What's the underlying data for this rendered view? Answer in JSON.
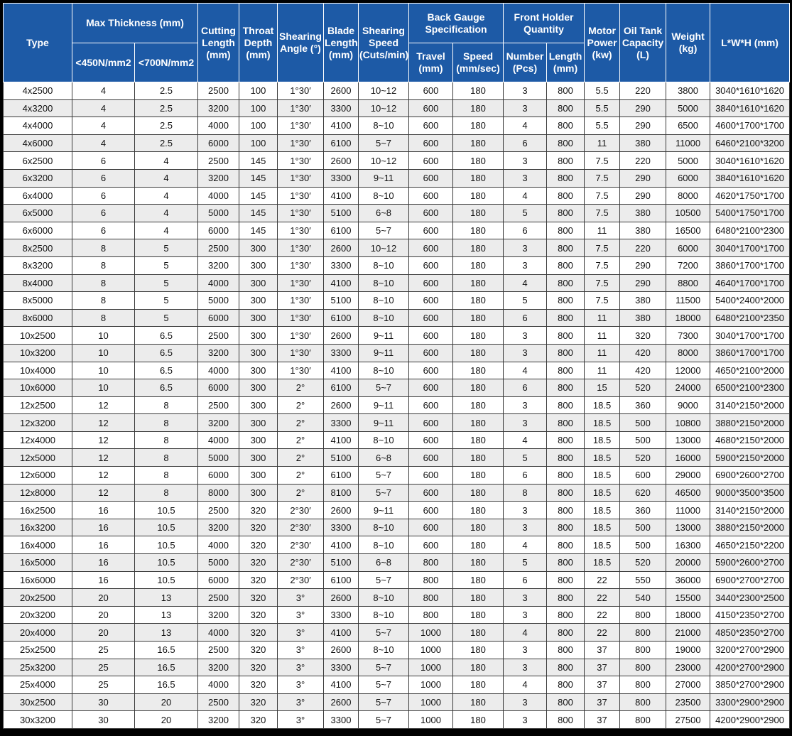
{
  "header": {
    "type": "Type",
    "max_thickness": "Max Thickness (mm)",
    "lt450": "<450N/mm2",
    "lt700": "<700N/mm2",
    "cutting_length": "Cutting Length (mm)",
    "throat_depth": "Throat Depth (mm)",
    "shearing_angle": "Shearing Angle (°)",
    "blade_length": "Blade Length (mm)",
    "shearing_speed": "Shearing Speed (Cuts/min)",
    "back_gauge": "Back Gauge Specification",
    "travel": "Travel (mm)",
    "speed": "Speed (mm/sec)",
    "front_holder": "Front Holder Quantity",
    "number": "Number (Pcs)",
    "length": "Length (mm)",
    "motor_power": "Motor Power (kw)",
    "oil_tank": "Oil Tank Capacity (L)",
    "weight": "Weight (kg)",
    "lwh": "L*W*H (mm)"
  },
  "rows": [
    [
      "4x2500",
      "4",
      "2.5",
      "2500",
      "100",
      "1°30′",
      "2600",
      "10~12",
      "600",
      "180",
      "3",
      "800",
      "5.5",
      "220",
      "3800",
      "3040*1610*1620"
    ],
    [
      "4x3200",
      "4",
      "2.5",
      "3200",
      "100",
      "1°30′",
      "3300",
      "10~12",
      "600",
      "180",
      "3",
      "800",
      "5.5",
      "290",
      "5000",
      "3840*1610*1620"
    ],
    [
      "4x4000",
      "4",
      "2.5",
      "4000",
      "100",
      "1°30′",
      "4100",
      "8~10",
      "600",
      "180",
      "4",
      "800",
      "5.5",
      "290",
      "6500",
      "4600*1700*1700"
    ],
    [
      "4x6000",
      "4",
      "2.5",
      "6000",
      "100",
      "1°30′",
      "6100",
      "5~7",
      "600",
      "180",
      "6",
      "800",
      "11",
      "380",
      "11000",
      "6460*2100*3200"
    ],
    [
      "6x2500",
      "6",
      "4",
      "2500",
      "145",
      "1°30′",
      "2600",
      "10~12",
      "600",
      "180",
      "3",
      "800",
      "7.5",
      "220",
      "5000",
      "3040*1610*1620"
    ],
    [
      "6x3200",
      "6",
      "4",
      "3200",
      "145",
      "1°30′",
      "3300",
      "9~11",
      "600",
      "180",
      "3",
      "800",
      "7.5",
      "290",
      "6000",
      "3840*1610*1620"
    ],
    [
      "6x4000",
      "6",
      "4",
      "4000",
      "145",
      "1°30′",
      "4100",
      "8~10",
      "600",
      "180",
      "4",
      "800",
      "7.5",
      "290",
      "8000",
      "4620*1750*1700"
    ],
    [
      "6x5000",
      "6",
      "4",
      "5000",
      "145",
      "1°30′",
      "5100",
      "6~8",
      "600",
      "180",
      "5",
      "800",
      "7.5",
      "380",
      "10500",
      "5400*1750*1700"
    ],
    [
      "6x6000",
      "6",
      "4",
      "6000",
      "145",
      "1°30′",
      "6100",
      "5~7",
      "600",
      "180",
      "6",
      "800",
      "11",
      "380",
      "16500",
      "6480*2100*2300"
    ],
    [
      "8x2500",
      "8",
      "5",
      "2500",
      "300",
      "1°30′",
      "2600",
      "10~12",
      "600",
      "180",
      "3",
      "800",
      "7.5",
      "220",
      "6000",
      "3040*1700*1700"
    ],
    [
      "8x3200",
      "8",
      "5",
      "3200",
      "300",
      "1°30′",
      "3300",
      "8~10",
      "600",
      "180",
      "3",
      "800",
      "7.5",
      "290",
      "7200",
      "3860*1700*1700"
    ],
    [
      "8x4000",
      "8",
      "5",
      "4000",
      "300",
      "1°30′",
      "4100",
      "8~10",
      "600",
      "180",
      "4",
      "800",
      "7.5",
      "290",
      "8800",
      "4640*1700*1700"
    ],
    [
      "8x5000",
      "8",
      "5",
      "5000",
      "300",
      "1°30′",
      "5100",
      "8~10",
      "600",
      "180",
      "5",
      "800",
      "7.5",
      "380",
      "11500",
      "5400*2400*2000"
    ],
    [
      "8x6000",
      "8",
      "5",
      "6000",
      "300",
      "1°30′",
      "6100",
      "8~10",
      "600",
      "180",
      "6",
      "800",
      "11",
      "380",
      "18000",
      "6480*2100*2350"
    ],
    [
      "10x2500",
      "10",
      "6.5",
      "2500",
      "300",
      "1°30′",
      "2600",
      "9~11",
      "600",
      "180",
      "3",
      "800",
      "11",
      "320",
      "7300",
      "3040*1700*1700"
    ],
    [
      "10x3200",
      "10",
      "6.5",
      "3200",
      "300",
      "1°30′",
      "3300",
      "9~11",
      "600",
      "180",
      "3",
      "800",
      "11",
      "420",
      "8000",
      "3860*1700*1700"
    ],
    [
      "10x4000",
      "10",
      "6.5",
      "4000",
      "300",
      "1°30′",
      "4100",
      "8~10",
      "600",
      "180",
      "4",
      "800",
      "11",
      "420",
      "12000",
      "4650*2100*2000"
    ],
    [
      "10x6000",
      "10",
      "6.5",
      "6000",
      "300",
      "2°",
      "6100",
      "5~7",
      "600",
      "180",
      "6",
      "800",
      "15",
      "520",
      "24000",
      "6500*2100*2300"
    ],
    [
      "12x2500",
      "12",
      "8",
      "2500",
      "300",
      "2°",
      "2600",
      "9~11",
      "600",
      "180",
      "3",
      "800",
      "18.5",
      "360",
      "9000",
      "3140*2150*2000"
    ],
    [
      "12x3200",
      "12",
      "8",
      "3200",
      "300",
      "2°",
      "3300",
      "9~11",
      "600",
      "180",
      "3",
      "800",
      "18.5",
      "500",
      "10800",
      "3880*2150*2000"
    ],
    [
      "12x4000",
      "12",
      "8",
      "4000",
      "300",
      "2°",
      "4100",
      "8~10",
      "600",
      "180",
      "4",
      "800",
      "18.5",
      "500",
      "13000",
      "4680*2150*2000"
    ],
    [
      "12x5000",
      "12",
      "8",
      "5000",
      "300",
      "2°",
      "5100",
      "6~8",
      "600",
      "180",
      "5",
      "800",
      "18.5",
      "520",
      "16000",
      "5900*2150*2000"
    ],
    [
      "12x6000",
      "12",
      "8",
      "6000",
      "300",
      "2°",
      "6100",
      "5~7",
      "600",
      "180",
      "6",
      "800",
      "18.5",
      "600",
      "29000",
      "6900*2600*2700"
    ],
    [
      "12x8000",
      "12",
      "8",
      "8000",
      "300",
      "2°",
      "8100",
      "5~7",
      "600",
      "180",
      "8",
      "800",
      "18.5",
      "620",
      "46500",
      "9000*3500*3500"
    ],
    [
      "16x2500",
      "16",
      "10.5",
      "2500",
      "320",
      "2°30′",
      "2600",
      "9~11",
      "600",
      "180",
      "3",
      "800",
      "18.5",
      "360",
      "11000",
      "3140*2150*2000"
    ],
    [
      "16x3200",
      "16",
      "10.5",
      "3200",
      "320",
      "2°30′",
      "3300",
      "8~10",
      "600",
      "180",
      "3",
      "800",
      "18.5",
      "500",
      "13000",
      "3880*2150*2000"
    ],
    [
      "16x4000",
      "16",
      "10.5",
      "4000",
      "320",
      "2°30′",
      "4100",
      "8~10",
      "600",
      "180",
      "4",
      "800",
      "18.5",
      "500",
      "16300",
      "4650*2150*2200"
    ],
    [
      "16x5000",
      "16",
      "10.5",
      "5000",
      "320",
      "2°30′",
      "5100",
      "6~8",
      "800",
      "180",
      "5",
      "800",
      "18.5",
      "520",
      "20000",
      "5900*2600*2700"
    ],
    [
      "16x6000",
      "16",
      "10.5",
      "6000",
      "320",
      "2°30′",
      "6100",
      "5~7",
      "800",
      "180",
      "6",
      "800",
      "22",
      "550",
      "36000",
      "6900*2700*2700"
    ],
    [
      "20x2500",
      "20",
      "13",
      "2500",
      "320",
      "3°",
      "2600",
      "8~10",
      "800",
      "180",
      "3",
      "800",
      "22",
      "540",
      "15500",
      "3440*2300*2500"
    ],
    [
      "20x3200",
      "20",
      "13",
      "3200",
      "320",
      "3°",
      "3300",
      "8~10",
      "800",
      "180",
      "3",
      "800",
      "22",
      "800",
      "18000",
      "4150*2350*2700"
    ],
    [
      "20x4000",
      "20",
      "13",
      "4000",
      "320",
      "3°",
      "4100",
      "5~7",
      "1000",
      "180",
      "4",
      "800",
      "22",
      "800",
      "21000",
      "4850*2350*2700"
    ],
    [
      "25x2500",
      "25",
      "16.5",
      "2500",
      "320",
      "3°",
      "2600",
      "8~10",
      "1000",
      "180",
      "3",
      "800",
      "37",
      "800",
      "19000",
      "3200*2700*2900"
    ],
    [
      "25x3200",
      "25",
      "16.5",
      "3200",
      "320",
      "3°",
      "3300",
      "5~7",
      "1000",
      "180",
      "3",
      "800",
      "37",
      "800",
      "23000",
      "4200*2700*2900"
    ],
    [
      "25x4000",
      "25",
      "16.5",
      "4000",
      "320",
      "3°",
      "4100",
      "5~7",
      "1000",
      "180",
      "4",
      "800",
      "37",
      "800",
      "27000",
      "3850*2700*2900"
    ],
    [
      "30x2500",
      "30",
      "20",
      "2500",
      "320",
      "3°",
      "2600",
      "5~7",
      "1000",
      "180",
      "3",
      "800",
      "37",
      "800",
      "23500",
      "3300*2900*2900"
    ],
    [
      "30x3200",
      "30",
      "20",
      "3200",
      "320",
      "3°",
      "3300",
      "5~7",
      "1000",
      "180",
      "3",
      "800",
      "37",
      "800",
      "27500",
      "4200*2900*2900"
    ]
  ]
}
